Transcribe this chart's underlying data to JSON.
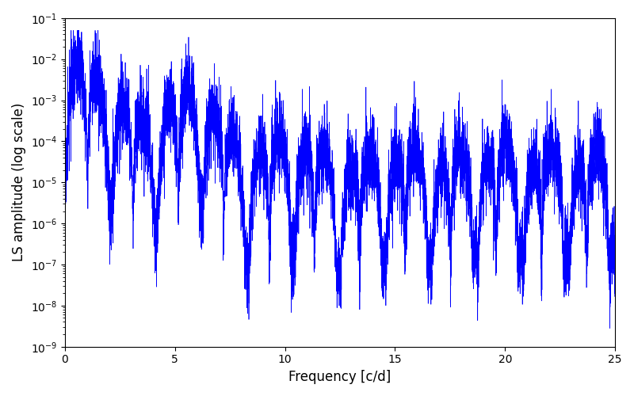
{
  "xlabel": "Frequency [c/d]",
  "ylabel": "LS amplitude (log scale)",
  "xlim": [
    0,
    25
  ],
  "ylim_log": [
    1e-09,
    0.1
  ],
  "line_color": "#0000ff",
  "line_width": 0.5,
  "background_color": "#ffffff",
  "figsize": [
    8.0,
    5.0
  ],
  "dpi": 100,
  "freq_max": 25.0,
  "n_points": 8000,
  "seed": 17
}
